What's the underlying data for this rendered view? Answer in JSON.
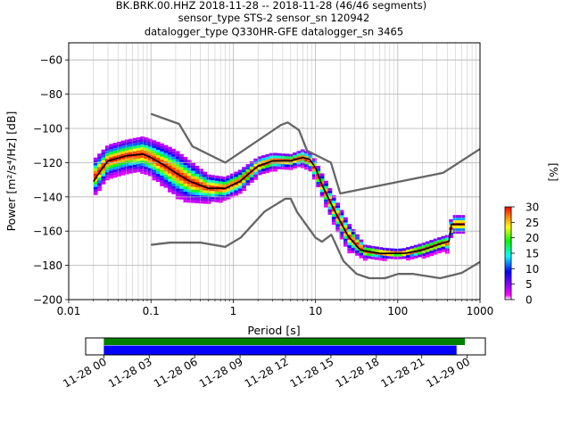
{
  "title": {
    "line1": "BK.BRK.00.HHZ   2018-11-28 -- 2018-11-28  (46/46 segments)",
    "line2": "sensor_type STS-2 sensor_sn 120942",
    "line3": "datalogger_type Q330HR-GFE datalogger_sn 3465"
  },
  "chart_data": [
    {
      "type": "heatmap",
      "subtype": "probabilistic power spectral density",
      "xlabel": "Period [s]",
      "ylabel": "Power [m²/s⁴/Hz] [dB]",
      "xscale": "log",
      "xlim": [
        0.01,
        1000
      ],
      "ylim": [
        -200,
        -50
      ],
      "xticks": [
        0.01,
        0.1,
        1,
        10,
        100,
        1000
      ],
      "xtick_labels": [
        "0.01",
        "0.1",
        "1",
        "10",
        "100",
        "1000"
      ],
      "yticks": [
        -200,
        -180,
        -160,
        -140,
        -120,
        -100,
        -80,
        -60
      ],
      "ytick_labels": [
        "−200",
        "−180",
        "−160",
        "−140",
        "−120",
        "−100",
        "−80",
        "−60"
      ],
      "grid": true,
      "colorbar": {
        "label": "[%]",
        "range": [
          0,
          30
        ],
        "ticks": [
          0,
          5,
          10,
          15,
          20,
          25,
          30
        ],
        "tick_labels": [
          "0",
          "5",
          "10",
          "15",
          "20",
          "25",
          "30"
        ],
        "colors": [
          "#ffffff",
          "#ff00ff",
          "#0000ff",
          "#00ffff",
          "#00ff00",
          "#ffff00",
          "#ff8000",
          "#ff0000"
        ]
      },
      "density": {
        "center": [
          [
            0.02,
            -129
          ],
          [
            0.03,
            -119
          ],
          [
            0.05,
            -116
          ],
          [
            0.08,
            -115
          ],
          [
            0.1,
            -117
          ],
          [
            0.15,
            -122
          ],
          [
            0.2,
            -126
          ],
          [
            0.3,
            -131
          ],
          [
            0.5,
            -135
          ],
          [
            0.8,
            -135
          ],
          [
            1.2,
            -131
          ],
          [
            2,
            -122
          ],
          [
            3,
            -119
          ],
          [
            5,
            -119
          ],
          [
            7,
            -117
          ],
          [
            9,
            -120
          ],
          [
            12,
            -133
          ],
          [
            17,
            -148
          ],
          [
            25,
            -163
          ],
          [
            40,
            -172
          ],
          [
            70,
            -173
          ],
          [
            120,
            -173
          ],
          [
            200,
            -171
          ],
          [
            350,
            -167
          ],
          [
            420,
            -167
          ],
          [
            450,
            -156
          ],
          [
            650,
            -156
          ]
        ],
        "spread": [
          [
            0.02,
            8
          ],
          [
            0.03,
            7
          ],
          [
            0.05,
            7
          ],
          [
            0.1,
            8
          ],
          [
            0.2,
            10
          ],
          [
            0.3,
            9
          ],
          [
            0.5,
            6
          ],
          [
            0.8,
            5
          ],
          [
            1.2,
            5
          ],
          [
            2,
            4
          ],
          [
            5,
            3
          ],
          [
            9,
            4
          ],
          [
            12,
            5
          ],
          [
            17,
            6
          ],
          [
            25,
            6
          ],
          [
            40,
            3
          ],
          [
            100,
            2
          ],
          [
            200,
            3
          ],
          [
            350,
            3
          ],
          [
            450,
            4
          ],
          [
            650,
            4
          ]
        ]
      },
      "series": [
        {
          "style": "median",
          "color": "#000000",
          "points": [
            [
              0.02,
              -131
            ],
            [
              0.025,
              -124
            ],
            [
              0.03,
              -119
            ],
            [
              0.05,
              -116
            ],
            [
              0.08,
              -115
            ],
            [
              0.1,
              -117
            ],
            [
              0.15,
              -122
            ],
            [
              0.2,
              -126
            ],
            [
              0.3,
              -131
            ],
            [
              0.5,
              -135
            ],
            [
              0.8,
              -135
            ],
            [
              1.2,
              -131
            ],
            [
              2,
              -122
            ],
            [
              3,
              -119
            ],
            [
              5,
              -119
            ],
            [
              7,
              -117
            ],
            [
              8.5,
              -118
            ],
            [
              10,
              -123
            ],
            [
              12,
              -133
            ],
            [
              17,
              -148
            ],
            [
              25,
              -163
            ],
            [
              35,
              -171
            ],
            [
              60,
              -173
            ],
            [
              120,
              -173
            ],
            [
              200,
              -171
            ],
            [
              350,
              -167
            ],
            [
              420,
              -166
            ],
            [
              450,
              -156
            ],
            [
              650,
              -156
            ]
          ]
        },
        {
          "style": "NHNM",
          "color": "#666666",
          "points": [
            [
              0.1,
              -91.5
            ],
            [
              0.22,
              -97.4
            ],
            [
              0.32,
              -110.5
            ],
            [
              0.8,
              -120
            ],
            [
              3.8,
              -98
            ],
            [
              4.6,
              -96.5
            ],
            [
              6.3,
              -101
            ],
            [
              7.9,
              -113
            ],
            [
              15.4,
              -120
            ],
            [
              20,
              -138
            ],
            [
              354.8,
              -126
            ],
            [
              1000,
              -112
            ]
          ]
        },
        {
          "style": "NLNM",
          "color": "#666666",
          "points": [
            [
              0.1,
              -168
            ],
            [
              0.17,
              -166.7
            ],
            [
              0.4,
              -166.7
            ],
            [
              0.8,
              -169.2
            ],
            [
              1.24,
              -163.7
            ],
            [
              2.4,
              -148.6
            ],
            [
              4.3,
              -141.1
            ],
            [
              5,
              -141.1
            ],
            [
              6,
              -149
            ],
            [
              10,
              -163.8
            ],
            [
              12,
              -166.2
            ],
            [
              15.6,
              -162.1
            ],
            [
              21.9,
              -177.5
            ],
            [
              31.6,
              -185
            ],
            [
              45,
              -187.5
            ],
            [
              70,
              -187.5
            ],
            [
              101,
              -185
            ],
            [
              154,
              -185
            ],
            [
              328,
              -187.5
            ],
            [
              600,
              -184.4
            ],
            [
              1000,
              -178
            ]
          ]
        }
      ]
    },
    {
      "type": "timeline",
      "tick_labels": [
        "11-28 00",
        "11-28 03",
        "11-28 06",
        "11-28 09",
        "11-28 12",
        "11-28 15",
        "11-28 18",
        "11-28 21",
        "11-29 00"
      ],
      "bars": [
        {
          "color": "#008000",
          "start_hour": 0,
          "end_hour": 23.85
        },
        {
          "color": "#0000ff",
          "start_hour": 0,
          "end_hour": 23.3
        }
      ],
      "xlim_hours": [
        -1.2,
        25.2
      ]
    }
  ]
}
